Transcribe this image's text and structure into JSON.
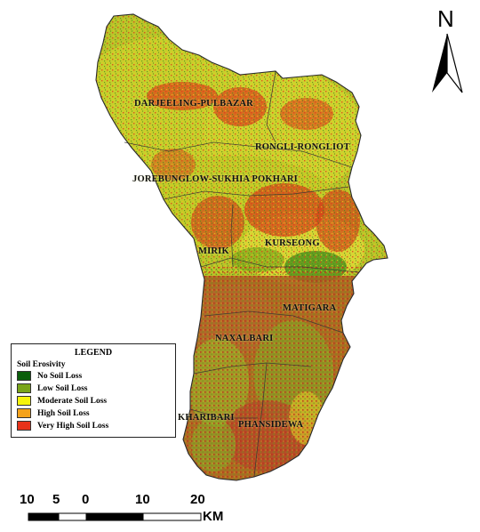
{
  "legend": {
    "title": "LEGEND",
    "subtitle": "Soil Erosivity",
    "items": [
      {
        "label": "No Soil Loss",
        "color": "#0b5e0b"
      },
      {
        "label": "Low Soil Loss",
        "color": "#7aa51b"
      },
      {
        "label": "Moderate Soil Loss",
        "color": "#f6f40c"
      },
      {
        "label": "High Soil Loss",
        "color": "#f4a21a"
      },
      {
        "label": "Very High Soil Loss",
        "color": "#e8321a"
      }
    ]
  },
  "regions": [
    {
      "name": "DARJEELING-PULBAZAR"
    },
    {
      "name": "RONGLI-RONGLIOT"
    },
    {
      "name": "JOREBUNGLOW-SUKHIA POKHARI"
    },
    {
      "name": "MIRIK"
    },
    {
      "name": "KURSEONG"
    },
    {
      "name": "MATIGARA"
    },
    {
      "name": "NAXALBARI"
    },
    {
      "name": "KHARIBARI"
    },
    {
      "name": "PHANSIDEWA"
    }
  ],
  "north_arrow": {
    "letter": "N"
  },
  "scale_bar": {
    "ticks": [
      "10",
      "5",
      "0",
      "10",
      "20"
    ],
    "unit": "KM"
  }
}
